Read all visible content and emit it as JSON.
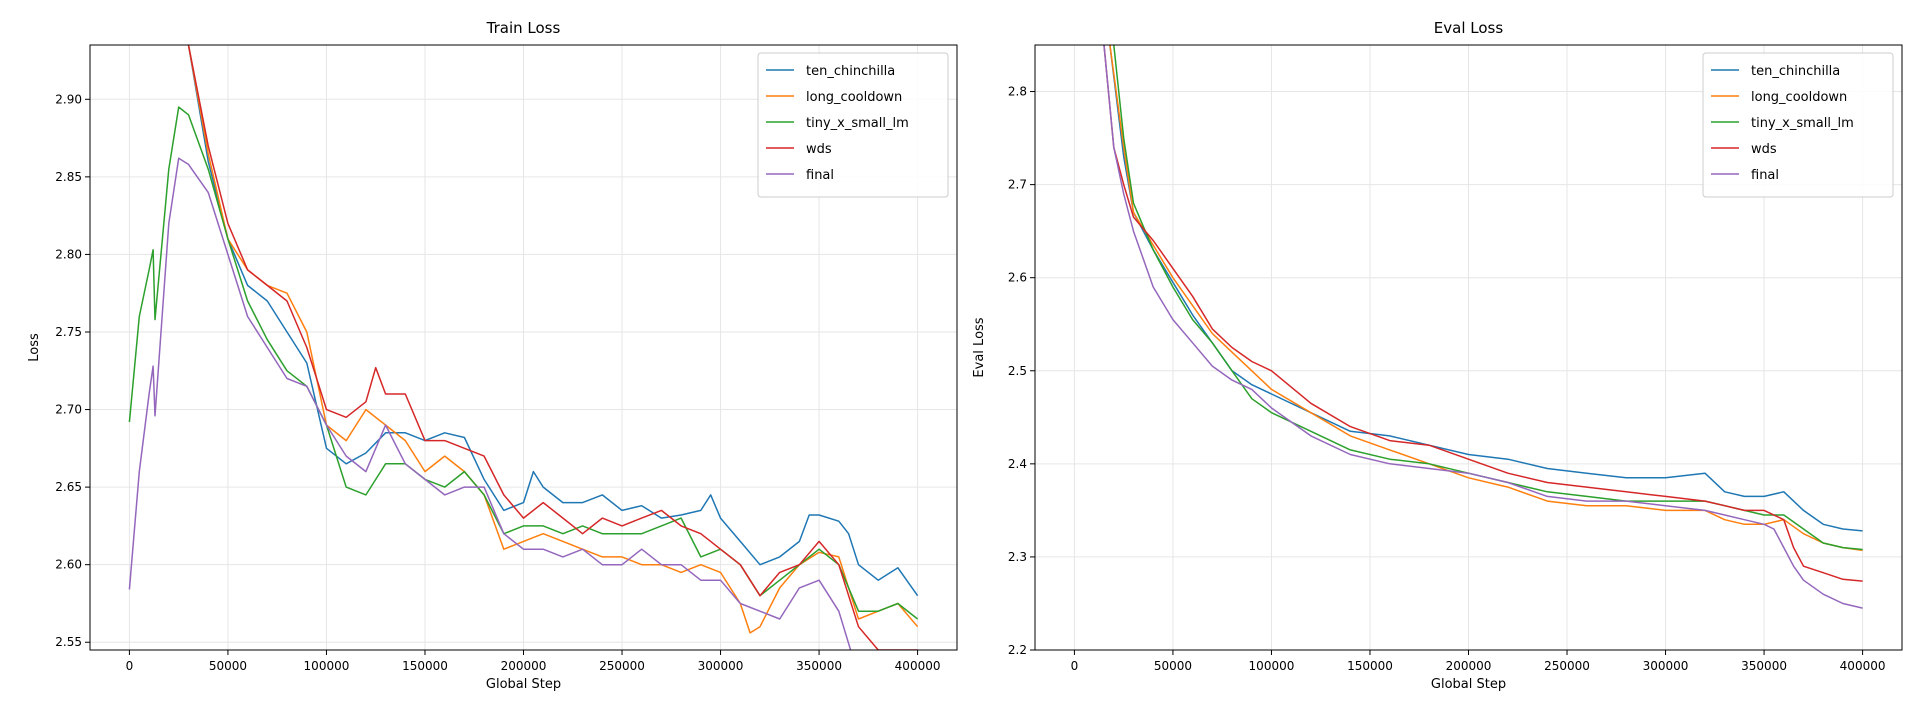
{
  "chart_data": [
    {
      "type": "line",
      "title": "Train Loss",
      "xlabel": "Global Step",
      "ylabel": "Loss",
      "xlim": [
        -20000,
        420000
      ],
      "ylim": [
        2.545,
        2.935
      ],
      "xticks": [
        0,
        50000,
        100000,
        150000,
        200000,
        250000,
        300000,
        350000,
        400000
      ],
      "xtick_labels": [
        "0",
        "50000",
        "100000",
        "150000",
        "200000",
        "250000",
        "300000",
        "350000",
        "400000"
      ],
      "yticks": [
        2.55,
        2.6,
        2.65,
        2.7,
        2.75,
        2.8,
        2.85,
        2.9
      ],
      "ytick_labels": [
        "2.55",
        "2.60",
        "2.65",
        "2.70",
        "2.75",
        "2.80",
        "2.85",
        "2.90"
      ],
      "grid": true,
      "legend_position": "top-right",
      "series": [
        {
          "name": "ten_chinchilla",
          "color": "#1f77b4",
          "x": [
            30000,
            40000,
            50000,
            60000,
            70000,
            80000,
            90000,
            100000,
            110000,
            120000,
            130000,
            140000,
            150000,
            160000,
            170000,
            180000,
            190000,
            200000,
            205000,
            210000,
            220000,
            230000,
            240000,
            250000,
            260000,
            270000,
            280000,
            290000,
            295000,
            300000,
            310000,
            320000,
            330000,
            340000,
            345000,
            350000,
            360000,
            365000,
            370000,
            380000,
            390000,
            400000
          ],
          "y": [
            2.935,
            2.86,
            2.81,
            2.78,
            2.77,
            2.75,
            2.73,
            2.675,
            2.665,
            2.672,
            2.685,
            2.685,
            2.68,
            2.685,
            2.682,
            2.655,
            2.635,
            2.64,
            2.66,
            2.65,
            2.64,
            2.64,
            2.645,
            2.635,
            2.638,
            2.63,
            2.632,
            2.635,
            2.645,
            2.63,
            2.615,
            2.6,
            2.605,
            2.615,
            2.632,
            2.632,
            2.628,
            2.62,
            2.6,
            2.59,
            2.598,
            2.58
          ]
        },
        {
          "name": "long_cooldown",
          "color": "#ff7f0e",
          "x": [
            30000,
            40000,
            50000,
            60000,
            70000,
            80000,
            90000,
            100000,
            110000,
            120000,
            130000,
            140000,
            150000,
            160000,
            170000,
            180000,
            190000,
            200000,
            210000,
            220000,
            230000,
            240000,
            250000,
            260000,
            270000,
            280000,
            290000,
            300000,
            310000,
            315000,
            320000,
            330000,
            340000,
            350000,
            360000,
            365000,
            370000,
            380000,
            390000,
            400000
          ],
          "y": [
            2.935,
            2.865,
            2.81,
            2.79,
            2.78,
            2.775,
            2.75,
            2.69,
            2.68,
            2.7,
            2.69,
            2.68,
            2.66,
            2.67,
            2.66,
            2.645,
            2.61,
            2.615,
            2.62,
            2.615,
            2.61,
            2.605,
            2.605,
            2.6,
            2.6,
            2.595,
            2.6,
            2.595,
            2.575,
            2.556,
            2.56,
            2.585,
            2.6,
            2.608,
            2.605,
            2.585,
            2.565,
            2.57,
            2.575,
            2.56
          ]
        },
        {
          "name": "tiny_x_small_lm",
          "color": "#2ca02c",
          "x": [
            0,
            5000,
            10000,
            12000,
            13000,
            20000,
            25000,
            30000,
            40000,
            50000,
            60000,
            70000,
            80000,
            90000,
            100000,
            110000,
            120000,
            130000,
            140000,
            150000,
            160000,
            170000,
            180000,
            190000,
            200000,
            210000,
            220000,
            230000,
            240000,
            250000,
            260000,
            270000,
            280000,
            290000,
            300000,
            310000,
            320000,
            330000,
            340000,
            350000,
            360000,
            370000,
            380000,
            390000,
            400000
          ],
          "y": [
            2.692,
            2.76,
            2.79,
            2.803,
            2.758,
            2.855,
            2.895,
            2.89,
            2.855,
            2.81,
            2.77,
            2.745,
            2.725,
            2.715,
            2.69,
            2.65,
            2.645,
            2.665,
            2.665,
            2.655,
            2.65,
            2.66,
            2.645,
            2.62,
            2.625,
            2.625,
            2.62,
            2.625,
            2.62,
            2.62,
            2.62,
            2.625,
            2.63,
            2.605,
            2.61,
            2.6,
            2.58,
            2.59,
            2.6,
            2.61,
            2.6,
            2.57,
            2.57,
            2.575,
            2.565
          ]
        },
        {
          "name": "wds",
          "color": "#d62728",
          "x": [
            30000,
            40000,
            50000,
            60000,
            70000,
            80000,
            90000,
            100000,
            110000,
            120000,
            125000,
            130000,
            140000,
            150000,
            160000,
            170000,
            180000,
            190000,
            200000,
            210000,
            220000,
            230000,
            240000,
            250000,
            260000,
            270000,
            280000,
            290000,
            300000,
            310000,
            320000,
            330000,
            340000,
            350000,
            360000,
            370000,
            380000,
            390000,
            400000
          ],
          "y": [
            2.935,
            2.87,
            2.82,
            2.79,
            2.78,
            2.77,
            2.74,
            2.7,
            2.695,
            2.705,
            2.727,
            2.71,
            2.71,
            2.68,
            2.68,
            2.675,
            2.67,
            2.645,
            2.63,
            2.64,
            2.63,
            2.62,
            2.63,
            2.625,
            2.63,
            2.635,
            2.625,
            2.62,
            2.61,
            2.6,
            2.58,
            2.595,
            2.6,
            2.615,
            2.6,
            2.56,
            2.545,
            2.545,
            2.545
          ]
        },
        {
          "name": "final",
          "color": "#9467bd",
          "x": [
            0,
            5000,
            10000,
            12000,
            13000,
            20000,
            25000,
            30000,
            40000,
            50000,
            60000,
            70000,
            80000,
            90000,
            100000,
            110000,
            120000,
            130000,
            140000,
            150000,
            160000,
            170000,
            180000,
            190000,
            200000,
            210000,
            220000,
            230000,
            240000,
            250000,
            260000,
            270000,
            280000,
            290000,
            300000,
            310000,
            320000,
            330000,
            340000,
            350000,
            360000,
            366000
          ],
          "y": [
            2.584,
            2.66,
            2.71,
            2.728,
            2.696,
            2.82,
            2.862,
            2.858,
            2.84,
            2.8,
            2.76,
            2.74,
            2.72,
            2.715,
            2.69,
            2.67,
            2.66,
            2.69,
            2.665,
            2.655,
            2.645,
            2.65,
            2.65,
            2.62,
            2.61,
            2.61,
            2.605,
            2.61,
            2.6,
            2.6,
            2.61,
            2.6,
            2.6,
            2.59,
            2.59,
            2.575,
            2.57,
            2.565,
            2.585,
            2.59,
            2.57,
            2.545
          ]
        }
      ]
    },
    {
      "type": "line",
      "title": "Eval Loss",
      "xlabel": "Global Step",
      "ylabel": "Eval Loss",
      "xlim": [
        -20000,
        420000
      ],
      "ylim": [
        2.2,
        2.85
      ],
      "xticks": [
        0,
        50000,
        100000,
        150000,
        200000,
        250000,
        300000,
        350000,
        400000
      ],
      "xtick_labels": [
        "0",
        "50000",
        "100000",
        "150000",
        "200000",
        "250000",
        "300000",
        "350000",
        "400000"
      ],
      "yticks": [
        2.2,
        2.3,
        2.4,
        2.5,
        2.6,
        2.7,
        2.8
      ],
      "ytick_labels": [
        "2.2",
        "2.3",
        "2.4",
        "2.5",
        "2.6",
        "2.7",
        "2.8"
      ],
      "grid": true,
      "legend_position": "top-right",
      "series": [
        {
          "name": "ten_chinchilla",
          "color": "#1f77b4",
          "x": [
            18000,
            25000,
            30000,
            40000,
            50000,
            60000,
            70000,
            80000,
            90000,
            100000,
            120000,
            140000,
            160000,
            180000,
            200000,
            220000,
            240000,
            260000,
            280000,
            300000,
            320000,
            330000,
            340000,
            350000,
            360000,
            370000,
            380000,
            390000,
            400000
          ],
          "y": [
            2.85,
            2.73,
            2.67,
            2.63,
            2.595,
            2.56,
            2.53,
            2.5,
            2.485,
            2.475,
            2.455,
            2.435,
            2.43,
            2.42,
            2.41,
            2.405,
            2.395,
            2.39,
            2.385,
            2.385,
            2.39,
            2.37,
            2.365,
            2.365,
            2.37,
            2.35,
            2.335,
            2.33,
            2.328
          ]
        },
        {
          "name": "long_cooldown",
          "color": "#ff7f0e",
          "x": [
            18000,
            25000,
            30000,
            40000,
            50000,
            60000,
            70000,
            80000,
            90000,
            100000,
            120000,
            140000,
            160000,
            180000,
            200000,
            220000,
            240000,
            260000,
            280000,
            300000,
            320000,
            330000,
            340000,
            350000,
            360000,
            370000,
            380000,
            390000,
            400000
          ],
          "y": [
            2.85,
            2.74,
            2.67,
            2.635,
            2.6,
            2.57,
            2.54,
            2.52,
            2.5,
            2.48,
            2.455,
            2.43,
            2.415,
            2.4,
            2.385,
            2.375,
            2.36,
            2.355,
            2.355,
            2.35,
            2.35,
            2.34,
            2.335,
            2.335,
            2.34,
            2.325,
            2.315,
            2.31,
            2.307
          ]
        },
        {
          "name": "tiny_x_small_lm",
          "color": "#2ca02c",
          "x": [
            20000,
            25000,
            30000,
            40000,
            50000,
            60000,
            70000,
            80000,
            90000,
            100000,
            120000,
            140000,
            160000,
            180000,
            200000,
            220000,
            240000,
            260000,
            280000,
            300000,
            320000,
            330000,
            340000,
            350000,
            360000,
            370000,
            380000,
            390000,
            400000
          ],
          "y": [
            2.85,
            2.75,
            2.68,
            2.63,
            2.59,
            2.555,
            2.53,
            2.5,
            2.47,
            2.455,
            2.435,
            2.415,
            2.405,
            2.4,
            2.39,
            2.38,
            2.37,
            2.365,
            2.36,
            2.36,
            2.36,
            2.355,
            2.35,
            2.345,
            2.345,
            2.33,
            2.315,
            2.31,
            2.308
          ]
        },
        {
          "name": "wds",
          "color": "#d62728",
          "x": [
            15000,
            20000,
            25000,
            30000,
            40000,
            50000,
            60000,
            70000,
            80000,
            90000,
            100000,
            120000,
            140000,
            160000,
            180000,
            200000,
            220000,
            240000,
            260000,
            280000,
            300000,
            320000,
            330000,
            340000,
            350000,
            360000,
            365000,
            370000,
            380000,
            390000,
            400000
          ],
          "y": [
            2.85,
            2.74,
            2.7,
            2.665,
            2.64,
            2.61,
            2.58,
            2.545,
            2.525,
            2.51,
            2.5,
            2.465,
            2.44,
            2.425,
            2.42,
            2.405,
            2.39,
            2.38,
            2.375,
            2.37,
            2.365,
            2.36,
            2.355,
            2.35,
            2.35,
            2.34,
            2.31,
            2.29,
            2.283,
            2.276,
            2.274
          ]
        },
        {
          "name": "final",
          "color": "#9467bd",
          "x": [
            15000,
            20000,
            25000,
            30000,
            40000,
            50000,
            60000,
            70000,
            80000,
            90000,
            100000,
            120000,
            140000,
            160000,
            180000,
            200000,
            220000,
            240000,
            260000,
            280000,
            300000,
            320000,
            330000,
            340000,
            350000,
            355000,
            360000,
            365000,
            370000,
            380000,
            390000,
            400000
          ],
          "y": [
            2.85,
            2.74,
            2.69,
            2.65,
            2.59,
            2.555,
            2.53,
            2.505,
            2.49,
            2.48,
            2.46,
            2.43,
            2.41,
            2.4,
            2.395,
            2.39,
            2.38,
            2.365,
            2.36,
            2.36,
            2.355,
            2.35,
            2.345,
            2.34,
            2.335,
            2.33,
            2.31,
            2.29,
            2.275,
            2.26,
            2.25,
            2.245
          ]
        }
      ]
    }
  ]
}
